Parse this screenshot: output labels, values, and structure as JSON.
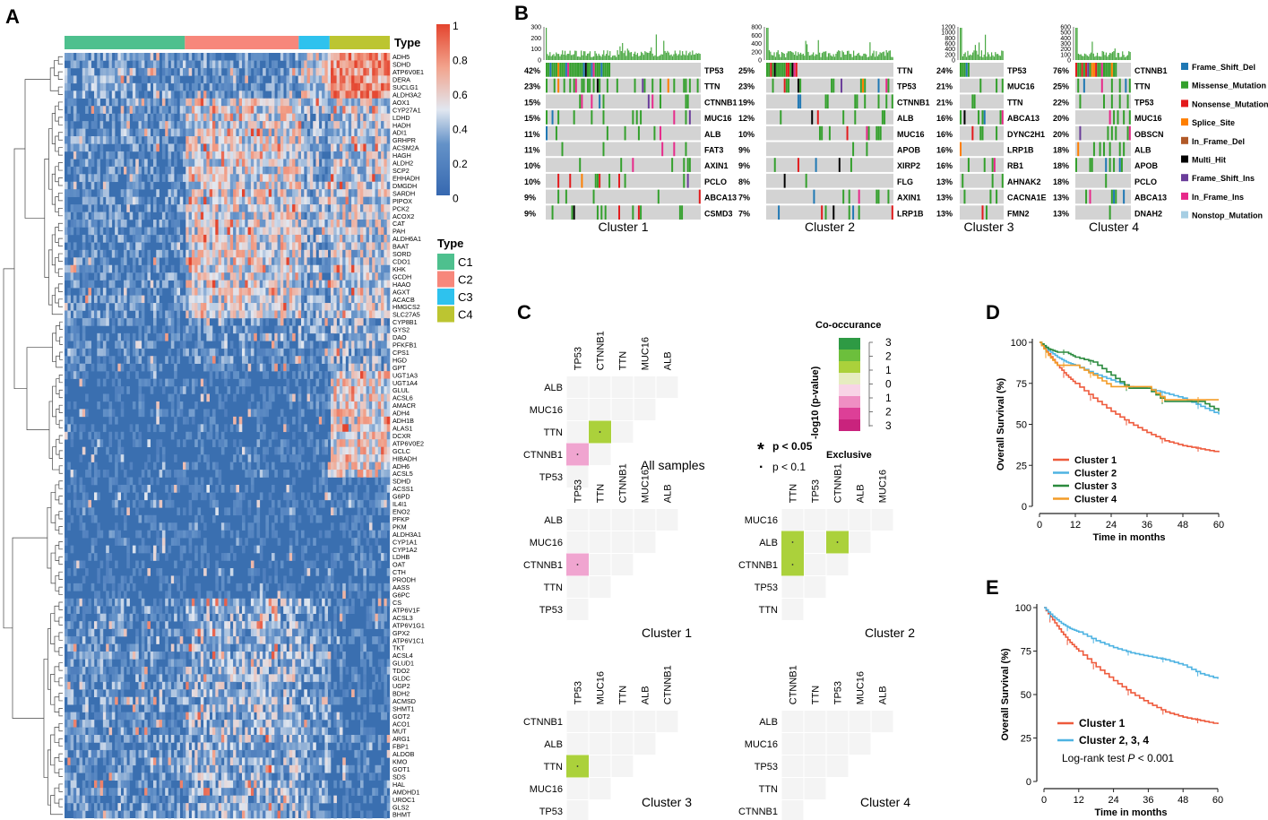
{
  "panels": {
    "a": "A",
    "b": "B",
    "c": "C",
    "d": "D",
    "e": "E"
  },
  "heatmap": {
    "type_title": "Type",
    "legend_title": "Type",
    "colorbar_ticks": [
      "1",
      "0.8",
      "0.6",
      "0.4",
      "0.2",
      "0"
    ],
    "clusters": [
      {
        "label": "C1",
        "color": "#4ec08e",
        "frac": 0.37
      },
      {
        "label": "C2",
        "color": "#f7877b",
        "frac": 0.35
      },
      {
        "label": "C3",
        "color": "#2ec2ee",
        "frac": 0.095
      },
      {
        "label": "C4",
        "color": "#bcc531",
        "frac": 0.185
      }
    ],
    "genes": [
      "ADH5",
      "SDHD",
      "ATP6V0E1",
      "DERA",
      "SUCLG1",
      "ALDH3A2",
      "AOX1",
      "CYP27A1",
      "LDHD",
      "HADH",
      "ADI1",
      "GRHPR",
      "ACSM2A",
      "HAGH",
      "ALDH2",
      "SCP2",
      "EHHADH",
      "DMGDH",
      "SARDH",
      "PIPOX",
      "PCK2",
      "ACOX2",
      "CAT",
      "PAH",
      "ALDH6A1",
      "BAAT",
      "SORD",
      "CDO1",
      "KHK",
      "GCDH",
      "HAAO",
      "AGXT",
      "ACACB",
      "HMGCS2",
      "SLC27A5",
      "CYP8B1",
      "GYS2",
      "DAO",
      "PFKFB1",
      "CPS1",
      "HGD",
      "GPT",
      "UGT1A3",
      "UGT1A4",
      "GLUL",
      "ACSL6",
      "AMACR",
      "ADH4",
      "ADH1B",
      "ALAS1",
      "DCXR",
      "ATP6V0E2",
      "GCLC",
      "HIBADH",
      "ADH6",
      "ACSL5",
      "SDHD",
      "ACSS1",
      "G6PD",
      "IL4I1",
      "ENO2",
      "PFKP",
      "PKM",
      "ALDH3A1",
      "CYP1A1",
      "CYP1A2",
      "LDHB",
      "OAT",
      "CTH",
      "PRODH",
      "AASS",
      "G6PC",
      "CS",
      "ATP6V1F",
      "ACSL3",
      "ATP6V1G1",
      "GPX2",
      "ATP6V1C1",
      "TKT",
      "ACSL4",
      "GLUD1",
      "TDO2",
      "GLDC",
      "UGP2",
      "BDH2",
      "ACMSD",
      "SHMT1",
      "GOT2",
      "ACO1",
      "MUT",
      "ARG1",
      "FBP1",
      "ALDOB",
      "KMO",
      "GOT1",
      "SDS",
      "HAL",
      "AMDHD1",
      "UROC1",
      "GLS2",
      "BHMT"
    ]
  },
  "oncoplot": {
    "clusters": [
      {
        "name": "Cluster 1",
        "ymax": [
          "300",
          "200",
          "100",
          "0"
        ],
        "genes": [
          "TP53",
          "TTN",
          "CTNNB1",
          "MUC16",
          "ALB",
          "FAT3",
          "AXIN1",
          "PCLO",
          "ABCA13",
          "CSMD3"
        ],
        "pcts": [
          "42%",
          "23%",
          "15%",
          "15%",
          "11%",
          "11%",
          "10%",
          "10%",
          "9%",
          "9%"
        ],
        "freq": [
          0.42,
          0.23,
          0.15,
          0.15,
          0.11,
          0.11,
          0.1,
          0.1,
          0.09,
          0.09
        ]
      },
      {
        "name": "Cluster 2",
        "ymax": [
          "800",
          "600",
          "400",
          "200",
          "0"
        ],
        "genes": [
          "TTN",
          "TP53",
          "CTNNB1",
          "ALB",
          "MUC16",
          "APOB",
          "XIRP2",
          "FLG",
          "AXIN1",
          "LRP1B"
        ],
        "pcts": [
          "25%",
          "23%",
          "19%",
          "12%",
          "10%",
          "9%",
          "9%",
          "8%",
          "7%",
          "7%"
        ],
        "freq": [
          0.25,
          0.23,
          0.19,
          0.12,
          0.1,
          0.09,
          0.09,
          0.08,
          0.07,
          0.07
        ]
      },
      {
        "name": "Cluster 3",
        "ymax": [
          "1200",
          "1000",
          "800",
          "600",
          "400",
          "200",
          "0"
        ],
        "genes": [
          "TP53",
          "MUC16",
          "TTN",
          "ABCA13",
          "DYNC2H1",
          "LRP1B",
          "RB1",
          "AHNAK2",
          "CACNA1E",
          "FMN2"
        ],
        "pcts": [
          "24%",
          "21%",
          "21%",
          "16%",
          "16%",
          "16%",
          "16%",
          "13%",
          "13%",
          "13%"
        ],
        "freq": [
          0.24,
          0.21,
          0.21,
          0.16,
          0.16,
          0.16,
          0.16,
          0.13,
          0.13,
          0.13
        ]
      },
      {
        "name": "Cluster 4",
        "ymax": [
          "600",
          "500",
          "400",
          "300",
          "200",
          "100",
          "0"
        ],
        "genes": [
          "CTNNB1",
          "TTN",
          "TP53",
          "MUC16",
          "OBSCN",
          "ALB",
          "APOB",
          "PCLO",
          "ABCA13",
          "DNAH2"
        ],
        "pcts": [
          "76%",
          "25%",
          "22%",
          "20%",
          "20%",
          "18%",
          "18%",
          "18%",
          "13%",
          "13%"
        ],
        "freq": [
          0.76,
          0.25,
          0.22,
          0.2,
          0.2,
          0.18,
          0.18,
          0.18,
          0.13,
          0.13
        ]
      }
    ],
    "legend": [
      {
        "label": "Frame_Shift_Del",
        "color": "#1f78b4"
      },
      {
        "label": "Missense_Mutation",
        "color": "#33a02c"
      },
      {
        "label": "Nonsense_Mutation",
        "color": "#e31a1c"
      },
      {
        "label": "Splice_Site",
        "color": "#ff7f00"
      },
      {
        "label": "In_Frame_Del",
        "color": "#b15928"
      },
      {
        "label": "Multi_Hit",
        "color": "#000000"
      },
      {
        "label": "Frame_Shift_Ins",
        "color": "#6a3d9a"
      },
      {
        "label": "In_Frame_Ins",
        "color": "#e7298a"
      },
      {
        "label": "Nonstop_Mutation",
        "color": "#a6cee3"
      }
    ]
  },
  "somatic": {
    "legend_title": "Co-occurance",
    "axis_label": "-log10 (p-value)",
    "scale_ticks": [
      "3",
      "2",
      "1",
      "0",
      "1",
      "2",
      "3"
    ],
    "scale_colors": [
      "#2e9a44",
      "#6cbf3c",
      "#abd13b",
      "#e6ecc0",
      "#f8d4e6",
      "#ef8fc3",
      "#dd3f97",
      "#c9237d"
    ],
    "exclusive_label": "Exclusive",
    "sig_label": "p < 0.05",
    "sig_symbol": "*",
    "trend_label": "p < 0.1",
    "trend_symbol": "·",
    "panels": [
      {
        "title": "All samples",
        "genes": [
          "TP53",
          "CTNNB1",
          "TTN",
          "MUC16",
          "ALB"
        ],
        "cells": [
          {
            "r": 2,
            "c": 1,
            "color": "#abd13b"
          },
          {
            "r": 3,
            "c": 0,
            "color": "#f0a5d0"
          }
        ]
      },
      {
        "title": "Cluster 1",
        "genes": [
          "TP53",
          "TTN",
          "CTNNB1",
          "MUC16",
          "ALB"
        ],
        "cells": [
          {
            "r": 2,
            "c": 0,
            "color": "#f0a5d0"
          }
        ]
      },
      {
        "title": "Cluster 2",
        "genes": [
          "TTN",
          "TP53",
          "CTNNB1",
          "ALB",
          "MUC16"
        ],
        "cells": [
          {
            "r": 1,
            "c": 0,
            "color": "#abd13b"
          },
          {
            "r": 1,
            "c": 2,
            "color": "#abd13b"
          },
          {
            "r": 2,
            "c": 0,
            "color": "#abd13b"
          }
        ]
      },
      {
        "title": "Cluster 3",
        "genes": [
          "TP53",
          "MUC16",
          "TTN",
          "ALB",
          "CTNNB1"
        ],
        "cells": [
          {
            "r": 2,
            "c": 0,
            "color": "#abd13b"
          }
        ]
      },
      {
        "title": "Cluster 4",
        "genes": [
          "CTNNB1",
          "TTN",
          "TP53",
          "MUC16",
          "ALB"
        ],
        "cells": []
      }
    ]
  },
  "chart_data": [
    {
      "type": "line",
      "title": "",
      "xlabel": "Time in months",
      "ylabel": "Overall Survival (%)",
      "xlim": [
        0,
        60
      ],
      "ylim": [
        0,
        100
      ],
      "xticks": [
        "0",
        "12",
        "24",
        "36",
        "48",
        "60"
      ],
      "yticks": [
        "0",
        "25",
        "50",
        "75",
        "100"
      ],
      "series": [
        {
          "name": "Cluster 1",
          "color": "#ee5a3c",
          "x": [
            0,
            3,
            6,
            9,
            12,
            18,
            24,
            30,
            36,
            42,
            48,
            54,
            60
          ],
          "values": [
            100,
            93,
            86,
            80,
            75,
            66,
            58,
            51,
            45,
            40,
            37,
            35,
            33
          ]
        },
        {
          "name": "Cluster 2",
          "color": "#4eb3e2",
          "x": [
            0,
            3,
            6,
            9,
            12,
            18,
            24,
            30,
            36,
            42,
            48,
            54,
            60
          ],
          "values": [
            100,
            95,
            91,
            88,
            86,
            81,
            77,
            73,
            72,
            69,
            66,
            61,
            56
          ]
        },
        {
          "name": "Cluster 3",
          "color": "#2b8a3e",
          "x": [
            0,
            3,
            6,
            9,
            12,
            18,
            24,
            30,
            36,
            42,
            48,
            54,
            60
          ],
          "values": [
            100,
            96,
            94,
            94,
            91,
            88,
            80,
            72,
            72,
            64,
            64,
            64,
            58
          ]
        },
        {
          "name": "Cluster 4",
          "color": "#f39c27",
          "x": [
            0,
            3,
            6,
            9,
            12,
            18,
            24,
            30,
            36,
            42,
            48,
            54,
            60
          ],
          "values": [
            100,
            92,
            86,
            86,
            86,
            80,
            73,
            73,
            73,
            65,
            65,
            65,
            65
          ]
        }
      ]
    },
    {
      "type": "line",
      "title": "",
      "xlabel": "Time in months",
      "ylabel": "Overall Survival (%)",
      "xlim": [
        0,
        60
      ],
      "ylim": [
        0,
        100
      ],
      "xticks": [
        "0",
        "12",
        "24",
        "36",
        "48",
        "60"
      ],
      "yticks": [
        "0",
        "25",
        "50",
        "75",
        "100"
      ],
      "annotation": "Log-rank test P < 0.001",
      "annotation_prefix": "Log-rank test ",
      "annotation_p": "P",
      "annotation_suffix": " < 0.001",
      "series": [
        {
          "name": "Cluster 1",
          "color": "#ee5a3c",
          "x": [
            0,
            3,
            6,
            9,
            12,
            18,
            24,
            30,
            36,
            42,
            48,
            54,
            60
          ],
          "values": [
            100,
            93,
            86,
            80,
            75,
            66,
            58,
            51,
            45,
            40,
            37,
            35,
            33
          ]
        },
        {
          "name": "Cluster 2, 3, 4",
          "color": "#4eb3e2",
          "x": [
            0,
            3,
            6,
            9,
            12,
            18,
            24,
            30,
            36,
            42,
            48,
            54,
            60
          ],
          "values": [
            100,
            95,
            91,
            88,
            86,
            81,
            77,
            74,
            72,
            70,
            67,
            62,
            59
          ]
        }
      ]
    }
  ]
}
